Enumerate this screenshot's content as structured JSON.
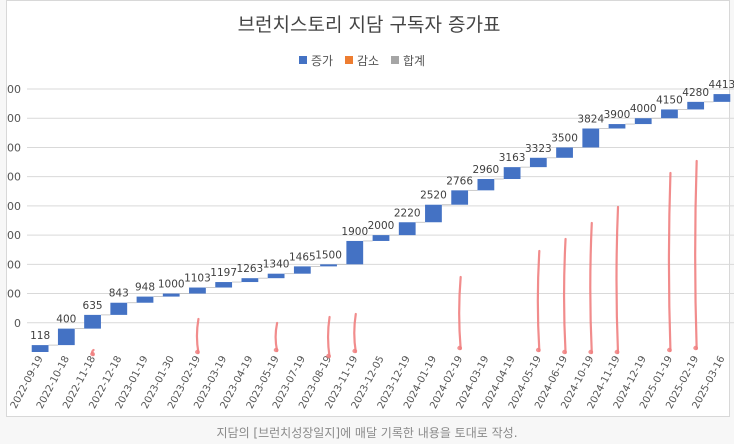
{
  "chart_data": {
    "type": "waterfall",
    "title": "브런치스토리 지담 구독자 증가표",
    "legend": [
      {
        "name": "증가",
        "color": "#4472c4"
      },
      {
        "name": "감소",
        "color": "#ed7d31"
      },
      {
        "name": "합계",
        "color": "#a5a5a5"
      }
    ],
    "legend_position": "top",
    "grid": true,
    "ylim": [
      0,
      4500
    ],
    "y_ticks_visible": [
      "00",
      "00",
      "00",
      "00",
      "00",
      "00",
      "00",
      "00",
      "0"
    ],
    "categories": [
      "2022-09-19",
      "2022-10-18",
      "2022-11-18",
      "2022-12-18",
      "2023-01-19",
      "2023-01-30",
      "2023-02-19",
      "2023-03-19",
      "2023-04-19",
      "2023-05-19",
      "2023-07-19",
      "2023-08-19",
      "2023-11-19",
      "2023-12-05",
      "2023-12-19",
      "2024-01-19",
      "2024-02-19",
      "2024-03-19",
      "2024-04-19",
      "2024-05-19",
      "2024-06-19",
      "2024-10-19",
      "2024-11-19",
      "2024-12-19",
      "2025-01-19",
      "2025-02-19",
      "2025-03-16"
    ],
    "values": [
      118,
      400,
      635,
      843,
      948,
      1000,
      1103,
      1197,
      1263,
      1340,
      1465,
      1500,
      1900,
      2000,
      2220,
      2520,
      2766,
      2960,
      3163,
      3323,
      3500,
      3824,
      3900,
      4000,
      4150,
      4280,
      4413
    ],
    "data_labels": [
      "118",
      "400",
      "635",
      "843",
      "948",
      "1000",
      "1103",
      "1197",
      "1263",
      "1340",
      "1465",
      "1500",
      "1900",
      "2000",
      "2220",
      "2520",
      "2766",
      "2960",
      "3163",
      "3323",
      "3500",
      "3824",
      "3900",
      "4000",
      "4150",
      "4280",
      "4413"
    ]
  },
  "caption": "지담의 [브런치성장일지]에 매달 기록한 내용을 토대로 작성."
}
